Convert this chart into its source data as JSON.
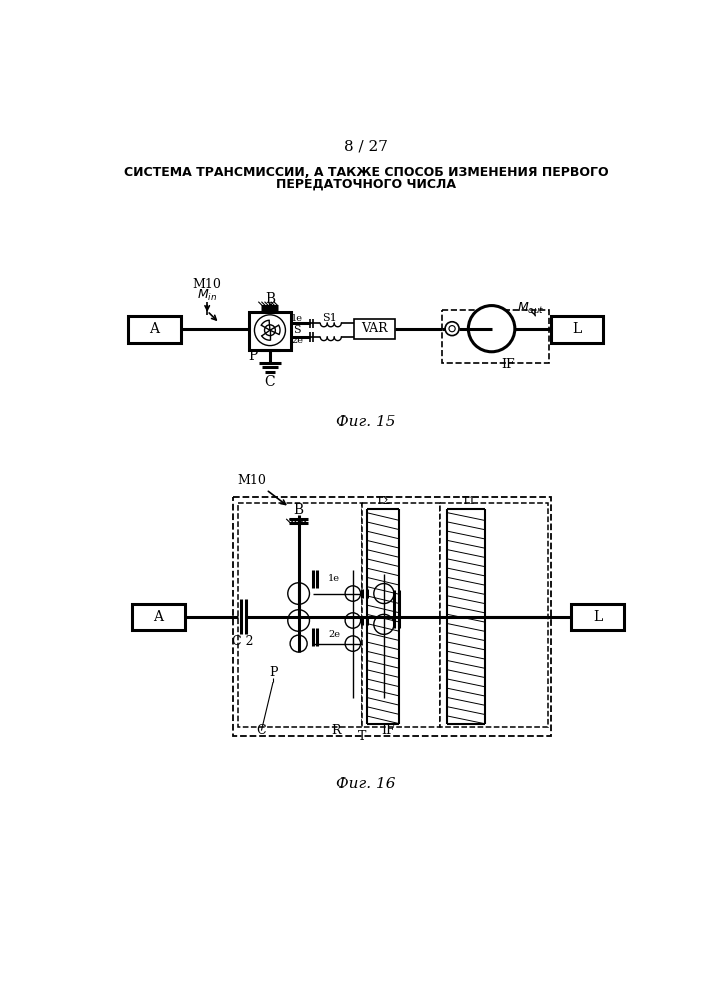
{
  "page_number": "8 / 27",
  "title_line1": "СИСТЕМА ТРАНСМИССИИ, А ТАКЖЕ СПОСОБ ИЗМЕНЕНИЯ ПЕРВОГО",
  "title_line2": "ПЕРЕДАТОЧНОГО ЧИСЛА",
  "fig15_caption": "Фиг. 15",
  "fig16_caption": "Фиг. 16",
  "bg_color": "#ffffff",
  "line_color": "#000000"
}
